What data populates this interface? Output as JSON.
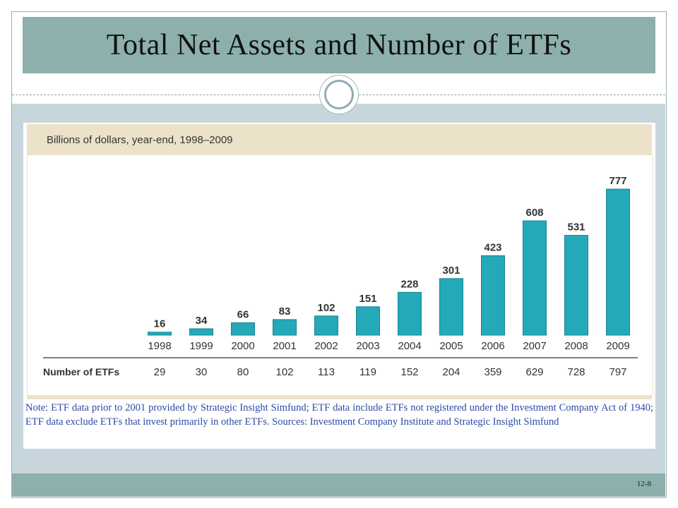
{
  "slide": {
    "title": "Total Net Assets and Number of ETFs",
    "page_number": "12-8"
  },
  "chart_data": {
    "type": "bar",
    "subtitle": "Billions of dollars, year-end, 1998–2009",
    "categories": [
      "1998",
      "1999",
      "2000",
      "2001",
      "2002",
      "2003",
      "2004",
      "2005",
      "2006",
      "2007",
      "2008",
      "2009"
    ],
    "series": [
      {
        "values": [
          16,
          34,
          66,
          83,
          102,
          151,
          228,
          301,
          423,
          608,
          531,
          777
        ]
      }
    ],
    "table_row": {
      "label": "Number of ETFs",
      "values": [
        "29",
        "30",
        "80",
        "102",
        "113",
        "119",
        "152",
        "204",
        "359",
        "629",
        "728",
        "797"
      ]
    },
    "bar_color": "#23a9b8",
    "ylim": [
      0,
      777
    ],
    "grid": false,
    "note": "Note: ETF data prior to 2001 provided by Strategic Insight Simfund; ETF data include ETFs not registered under the Investment Company Act of 1940; ETF data exclude ETFs that invest primarily in other ETFs. Sources: Investment Company Institute and Strategic Insight Simfund"
  }
}
